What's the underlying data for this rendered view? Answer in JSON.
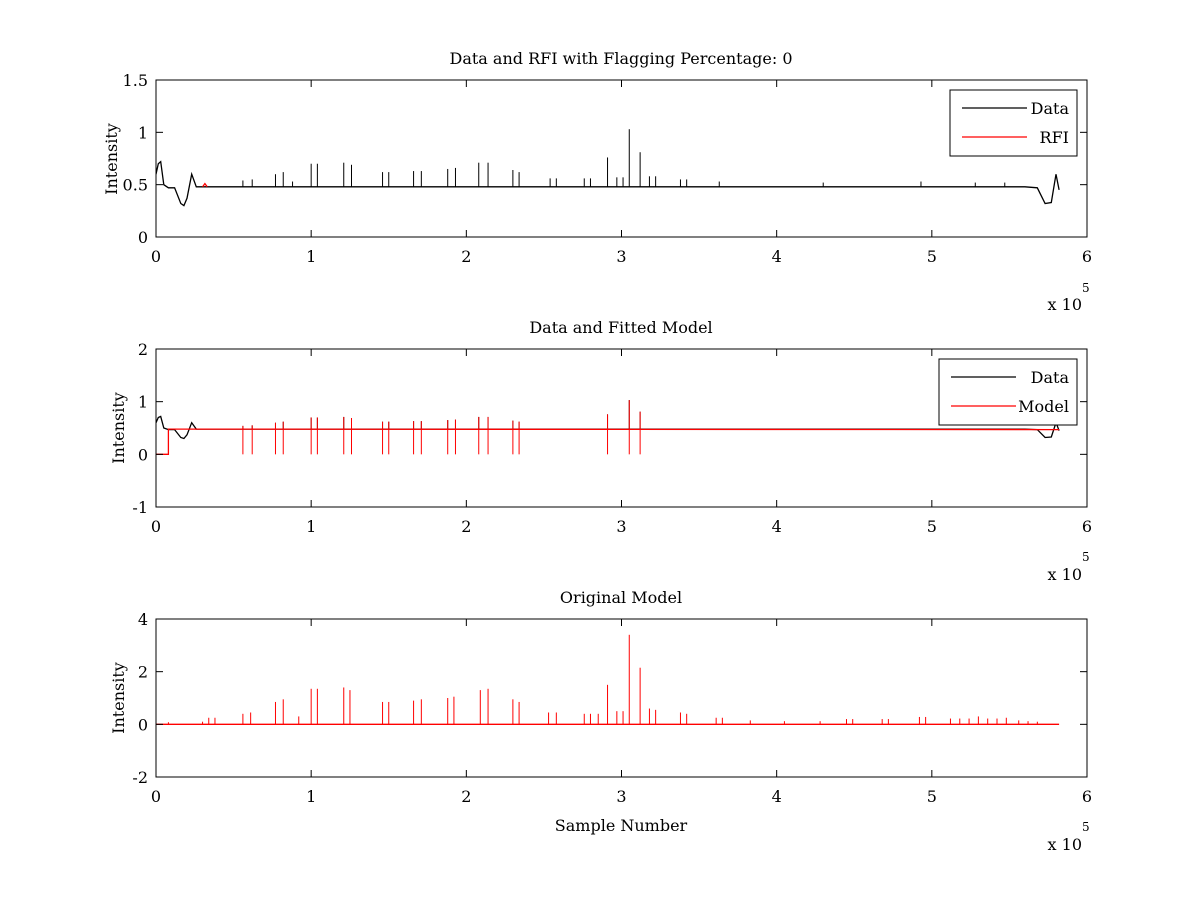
{
  "figure": {
    "background": "#ffffff",
    "axis_color": "#000000"
  },
  "chart_data": [
    {
      "type": "line",
      "title": "Data and RFI with Flagging Percentage: 0",
      "xlabel": "",
      "ylabel": "Intensity",
      "xlim": [
        0,
        600000
      ],
      "ylim": [
        0,
        1.5
      ],
      "xticks": [
        0,
        1,
        2,
        3,
        4,
        5,
        6
      ],
      "xtick_scale_label": "x 10",
      "xtick_scale_exponent": "5",
      "yticks": [
        "0",
        "0.5",
        "1",
        "1.5"
      ],
      "ytick_values": [
        0,
        0.5,
        1,
        1.5
      ],
      "grid": false,
      "legend_position": "top-right",
      "series": [
        {
          "name": "Data",
          "color": "#000000",
          "baseline": 0.48,
          "x": [
            0,
            1500,
            3000,
            5000,
            8000,
            12000,
            16000,
            18000,
            20000,
            23000,
            26000,
            560000,
            568000,
            573000,
            577000,
            580000,
            582000
          ],
          "y": [
            0.6,
            0.7,
            0.72,
            0.5,
            0.47,
            0.47,
            0.32,
            0.3,
            0.37,
            0.6,
            0.48,
            0.48,
            0.47,
            0.32,
            0.33,
            0.6,
            0.45
          ],
          "spikes": [
            {
              "x": 56000,
              "y": 0.54
            },
            {
              "x": 62000,
              "y": 0.55
            },
            {
              "x": 77000,
              "y": 0.6
            },
            {
              "x": 82000,
              "y": 0.62
            },
            {
              "x": 88000,
              "y": 0.53
            },
            {
              "x": 100000,
              "y": 0.7
            },
            {
              "x": 104000,
              "y": 0.7
            },
            {
              "x": 121000,
              "y": 0.71
            },
            {
              "x": 126000,
              "y": 0.69
            },
            {
              "x": 146000,
              "y": 0.62
            },
            {
              "x": 150000,
              "y": 0.62
            },
            {
              "x": 166000,
              "y": 0.63
            },
            {
              "x": 171000,
              "y": 0.63
            },
            {
              "x": 188000,
              "y": 0.65
            },
            {
              "x": 193000,
              "y": 0.66
            },
            {
              "x": 208000,
              "y": 0.71
            },
            {
              "x": 214000,
              "y": 0.71
            },
            {
              "x": 230000,
              "y": 0.64
            },
            {
              "x": 234000,
              "y": 0.62
            },
            {
              "x": 254000,
              "y": 0.56
            },
            {
              "x": 258000,
              "y": 0.56
            },
            {
              "x": 276000,
              "y": 0.56
            },
            {
              "x": 280000,
              "y": 0.56
            },
            {
              "x": 291000,
              "y": 0.76
            },
            {
              "x": 297000,
              "y": 0.57
            },
            {
              "x": 301000,
              "y": 0.57
            },
            {
              "x": 305000,
              "y": 1.03
            },
            {
              "x": 312000,
              "y": 0.81
            },
            {
              "x": 318000,
              "y": 0.58
            },
            {
              "x": 322000,
              "y": 0.58
            },
            {
              "x": 338000,
              "y": 0.55
            },
            {
              "x": 342000,
              "y": 0.55
            },
            {
              "x": 363000,
              "y": 0.53
            },
            {
              "x": 430000,
              "y": 0.52
            },
            {
              "x": 493000,
              "y": 0.53
            },
            {
              "x": 528000,
              "y": 0.52
            },
            {
              "x": 547000,
              "y": 0.52
            }
          ]
        },
        {
          "name": "RFI",
          "color": "#ff0000",
          "x": [
            30000,
            31500,
            33000
          ],
          "y": [
            0.48,
            0.51,
            0.48
          ]
        }
      ]
    },
    {
      "type": "line",
      "title": "Data and Fitted Model",
      "xlabel": "",
      "ylabel": "Intensity",
      "xlim": [
        0,
        600000
      ],
      "ylim": [
        -1,
        2
      ],
      "xticks": [
        0,
        1,
        2,
        3,
        4,
        5,
        6
      ],
      "xtick_scale_label": "x 10",
      "xtick_scale_exponent": "5",
      "yticks": [
        "-1",
        "0",
        "1",
        "2"
      ],
      "ytick_values": [
        -1,
        0,
        1,
        2
      ],
      "grid": false,
      "legend_position": "top-right",
      "series": [
        {
          "name": "Data",
          "color": "#000000",
          "baseline": 0.48,
          "x": [
            0,
            1500,
            3000,
            5000,
            8000,
            12000,
            16000,
            18000,
            20000,
            23000,
            26000,
            560000,
            568000,
            573000,
            577000,
            580000,
            582000
          ],
          "y": [
            0.6,
            0.7,
            0.72,
            0.5,
            0.47,
            0.47,
            0.32,
            0.3,
            0.37,
            0.6,
            0.48,
            0.48,
            0.47,
            0.32,
            0.33,
            0.6,
            0.45
          ],
          "spikes": [
            {
              "x": 56000,
              "y": 0.54
            },
            {
              "x": 62000,
              "y": 0.55
            },
            {
              "x": 77000,
              "y": 0.6
            },
            {
              "x": 82000,
              "y": 0.62
            },
            {
              "x": 100000,
              "y": 0.7
            },
            {
              "x": 104000,
              "y": 0.7
            },
            {
              "x": 121000,
              "y": 0.71
            },
            {
              "x": 126000,
              "y": 0.69
            },
            {
              "x": 146000,
              "y": 0.62
            },
            {
              "x": 150000,
              "y": 0.62
            },
            {
              "x": 166000,
              "y": 0.63
            },
            {
              "x": 171000,
              "y": 0.63
            },
            {
              "x": 188000,
              "y": 0.65
            },
            {
              "x": 193000,
              "y": 0.66
            },
            {
              "x": 208000,
              "y": 0.71
            },
            {
              "x": 214000,
              "y": 0.71
            },
            {
              "x": 230000,
              "y": 0.64
            },
            {
              "x": 234000,
              "y": 0.62
            },
            {
              "x": 291000,
              "y": 0.76
            },
            {
              "x": 305000,
              "y": 1.03
            },
            {
              "x": 312000,
              "y": 0.81
            }
          ]
        },
        {
          "name": "Model",
          "color": "#ff0000",
          "x": [
            0,
            3000,
            3000,
            8000,
            8000,
            582000
          ],
          "y": [
            0.0,
            0.0,
            0.0,
            0.0,
            0.48,
            0.47
          ],
          "spikes": [
            {
              "x": 56000,
              "y": 0.54
            },
            {
              "x": 62000,
              "y": 0.55
            },
            {
              "x": 77000,
              "y": 0.6
            },
            {
              "x": 82000,
              "y": 0.62
            },
            {
              "x": 100000,
              "y": 0.7
            },
            {
              "x": 104000,
              "y": 0.7
            },
            {
              "x": 121000,
              "y": 0.71
            },
            {
              "x": 126000,
              "y": 0.69
            },
            {
              "x": 146000,
              "y": 0.62
            },
            {
              "x": 150000,
              "y": 0.62
            },
            {
              "x": 166000,
              "y": 0.63
            },
            {
              "x": 171000,
              "y": 0.63
            },
            {
              "x": 188000,
              "y": 0.65
            },
            {
              "x": 193000,
              "y": 0.66
            },
            {
              "x": 208000,
              "y": 0.71
            },
            {
              "x": 214000,
              "y": 0.71
            },
            {
              "x": 230000,
              "y": 0.64
            },
            {
              "x": 234000,
              "y": 0.62
            },
            {
              "x": 291000,
              "y": 0.76
            },
            {
              "x": 305000,
              "y": 1.03
            },
            {
              "x": 312000,
              "y": 0.81
            }
          ]
        }
      ]
    },
    {
      "type": "line",
      "title": "Original Model",
      "xlabel": "Sample Number",
      "ylabel": "Intensity",
      "xlim": [
        0,
        600000
      ],
      "ylim": [
        -2,
        4
      ],
      "xticks": [
        0,
        1,
        2,
        3,
        4,
        5,
        6
      ],
      "xtick_scale_label": "x 10",
      "xtick_scale_exponent": "5",
      "yticks": [
        "-2",
        "0",
        "2",
        "4"
      ],
      "ytick_values": [
        -2,
        0,
        2,
        4
      ],
      "grid": false,
      "legend_position": "none",
      "series": [
        {
          "name": "",
          "color": "#ff0000",
          "baseline": 0.0,
          "x": [
            0,
            582000
          ],
          "y": [
            0.0,
            0.0
          ],
          "spikes": [
            {
              "x": 8000,
              "y": 0.08
            },
            {
              "x": 30000,
              "y": 0.1
            },
            {
              "x": 34000,
              "y": 0.25
            },
            {
              "x": 38000,
              "y": 0.25
            },
            {
              "x": 56000,
              "y": 0.4
            },
            {
              "x": 61000,
              "y": 0.45
            },
            {
              "x": 77000,
              "y": 0.85
            },
            {
              "x": 82000,
              "y": 0.95
            },
            {
              "x": 92000,
              "y": 0.3
            },
            {
              "x": 100000,
              "y": 1.35
            },
            {
              "x": 104000,
              "y": 1.35
            },
            {
              "x": 121000,
              "y": 1.4
            },
            {
              "x": 125000,
              "y": 1.3
            },
            {
              "x": 146000,
              "y": 0.85
            },
            {
              "x": 150000,
              "y": 0.85
            },
            {
              "x": 166000,
              "y": 0.9
            },
            {
              "x": 171000,
              "y": 0.95
            },
            {
              "x": 188000,
              "y": 1.0
            },
            {
              "x": 192000,
              "y": 1.05
            },
            {
              "x": 209000,
              "y": 1.3
            },
            {
              "x": 214000,
              "y": 1.35
            },
            {
              "x": 230000,
              "y": 0.95
            },
            {
              "x": 234000,
              "y": 0.85
            },
            {
              "x": 253000,
              "y": 0.45
            },
            {
              "x": 258000,
              "y": 0.45
            },
            {
              "x": 276000,
              "y": 0.4
            },
            {
              "x": 280000,
              "y": 0.4
            },
            {
              "x": 285000,
              "y": 0.4
            },
            {
              "x": 291000,
              "y": 1.5
            },
            {
              "x": 297000,
              "y": 0.5
            },
            {
              "x": 301000,
              "y": 0.5
            },
            {
              "x": 305000,
              "y": 3.4
            },
            {
              "x": 312000,
              "y": 2.15
            },
            {
              "x": 318000,
              "y": 0.6
            },
            {
              "x": 322000,
              "y": 0.55
            },
            {
              "x": 338000,
              "y": 0.45
            },
            {
              "x": 342000,
              "y": 0.4
            },
            {
              "x": 361000,
              "y": 0.25
            },
            {
              "x": 365000,
              "y": 0.25
            },
            {
              "x": 383000,
              "y": 0.15
            },
            {
              "x": 405000,
              "y": 0.12
            },
            {
              "x": 428000,
              "y": 0.12
            },
            {
              "x": 445000,
              "y": 0.2
            },
            {
              "x": 449000,
              "y": 0.2
            },
            {
              "x": 468000,
              "y": 0.2
            },
            {
              "x": 472000,
              "y": 0.2
            },
            {
              "x": 492000,
              "y": 0.28
            },
            {
              "x": 496000,
              "y": 0.28
            },
            {
              "x": 512000,
              "y": 0.22
            },
            {
              "x": 518000,
              "y": 0.22
            },
            {
              "x": 524000,
              "y": 0.22
            },
            {
              "x": 530000,
              "y": 0.3
            },
            {
              "x": 536000,
              "y": 0.22
            },
            {
              "x": 542000,
              "y": 0.22
            },
            {
              "x": 548000,
              "y": 0.25
            },
            {
              "x": 556000,
              "y": 0.15
            },
            {
              "x": 562000,
              "y": 0.12
            },
            {
              "x": 568000,
              "y": 0.1
            }
          ]
        }
      ]
    }
  ]
}
